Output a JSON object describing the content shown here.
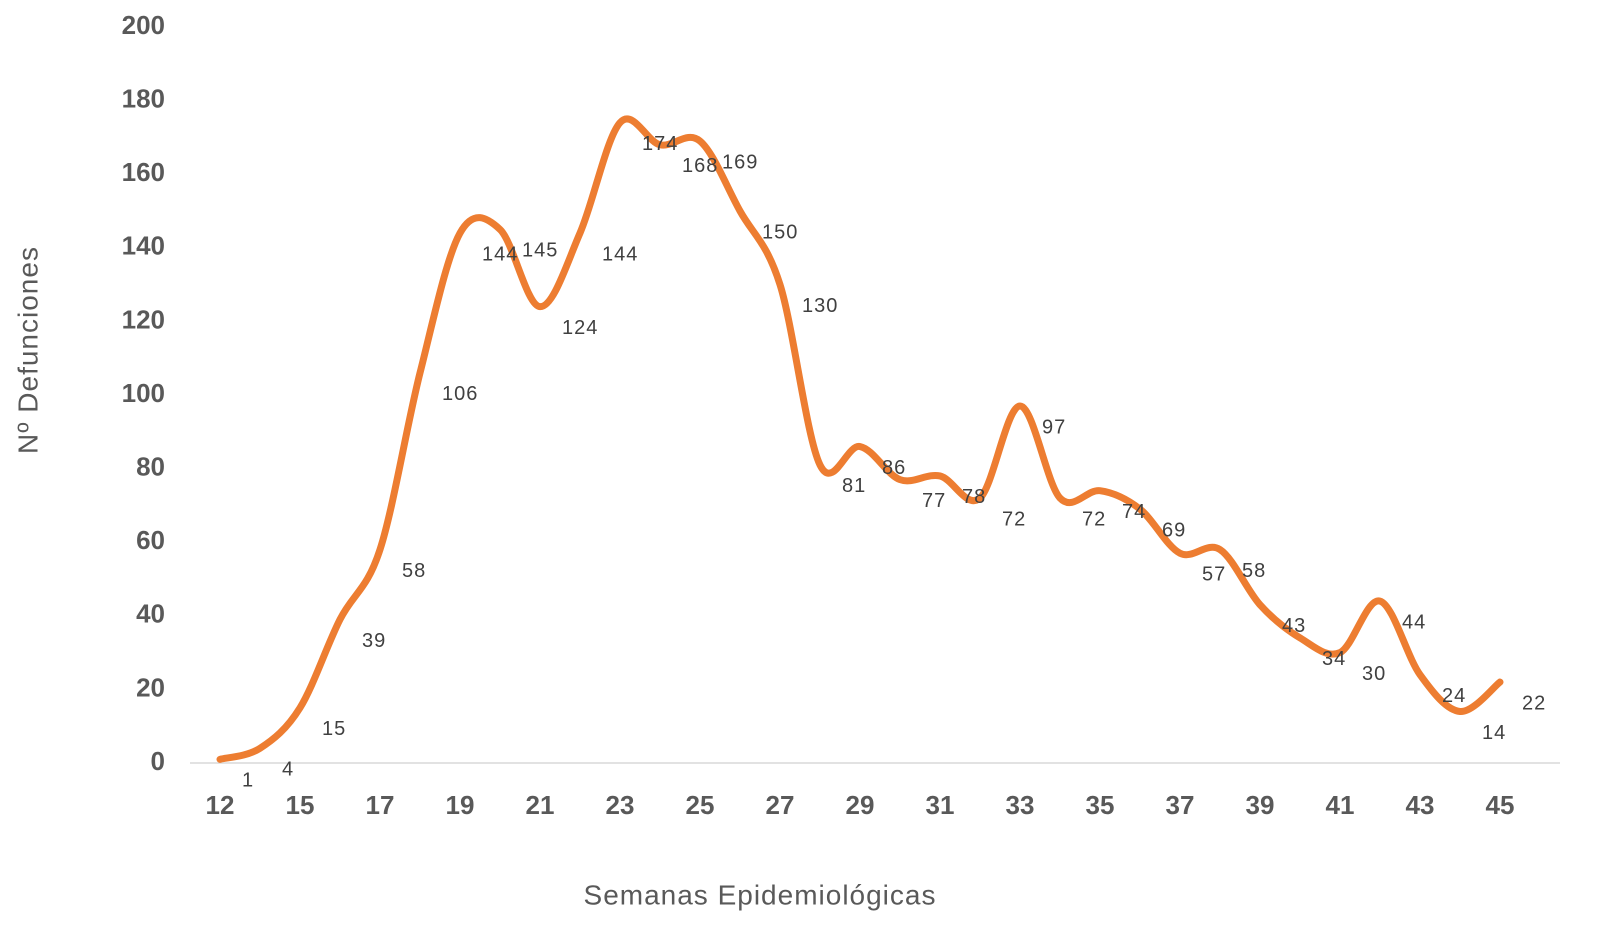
{
  "chart_data": {
    "type": "line",
    "x_label": "Semanas Epidemiológicas",
    "y_label": "Nº Defunciones",
    "categories": [
      12,
      null,
      15,
      null,
      17,
      null,
      19,
      null,
      21,
      null,
      23,
      null,
      25,
      null,
      27,
      null,
      29,
      null,
      31,
      null,
      33,
      null,
      35,
      null,
      37,
      null,
      39,
      null,
      41,
      null,
      43,
      null,
      45
    ],
    "series": [
      {
        "name": "Nº Defunciones",
        "color": "#ed7d31",
        "values": [
          1,
          4,
          15,
          39,
          58,
          106,
          144,
          145,
          124,
          144,
          174,
          168,
          169,
          150,
          130,
          81,
          86,
          77,
          78,
          72,
          97,
          72,
          74,
          69,
          57,
          58,
          43,
          34,
          30,
          44,
          24,
          14,
          22
        ]
      }
    ],
    "ylim": [
      0,
      200
    ],
    "yticks": [
      0,
      20,
      40,
      60,
      80,
      100,
      120,
      140,
      160,
      180,
      200
    ],
    "grid": false,
    "data_labels": true
  }
}
